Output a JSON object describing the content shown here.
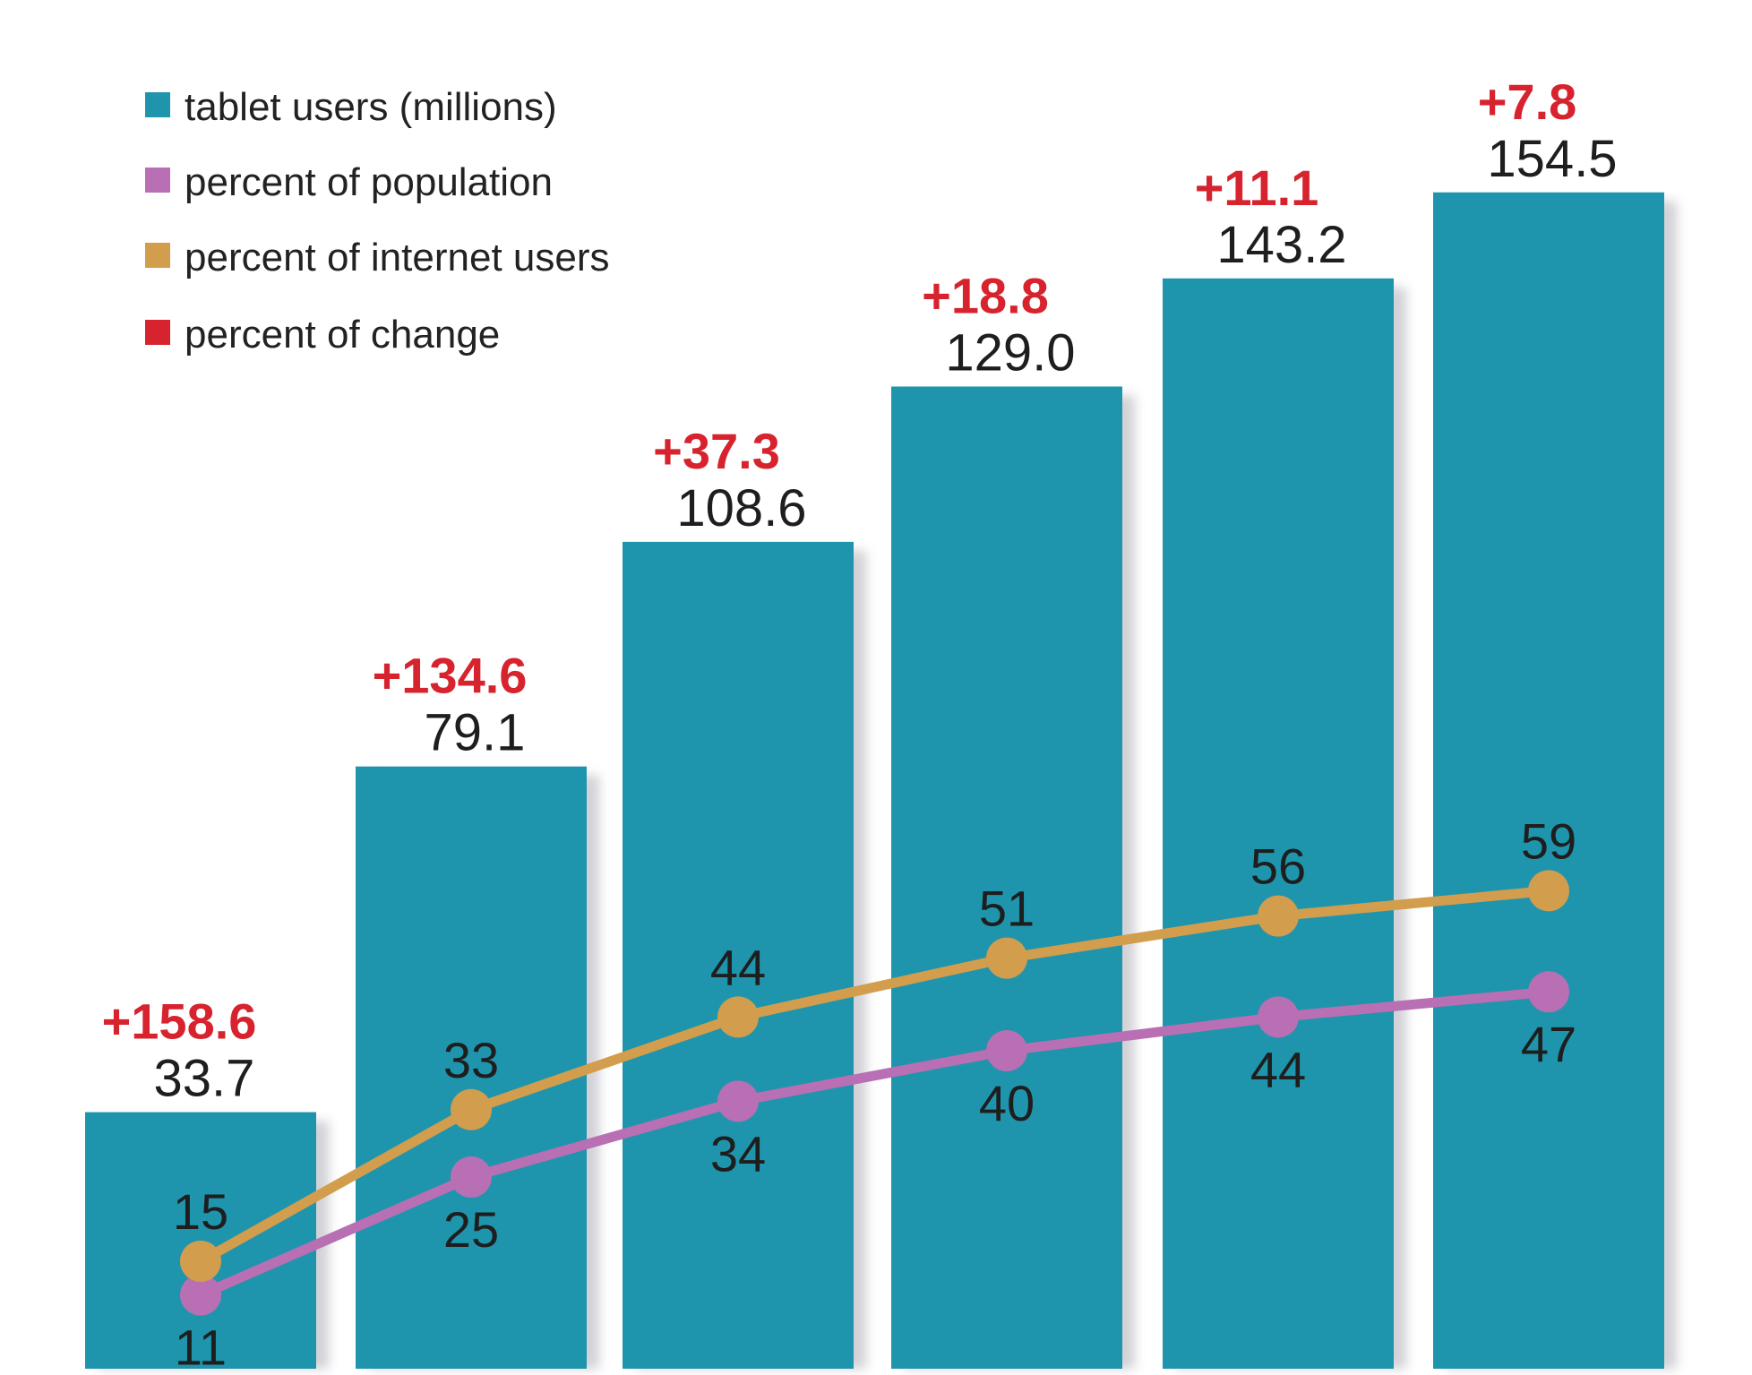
{
  "chart_data": {
    "type": "bar",
    "title": "",
    "xlabel": "",
    "ylabel": "",
    "categories": [
      "",
      "",
      "",
      "",
      "",
      ""
    ],
    "ylim": [
      0,
      160
    ],
    "line_ylim": [
      0,
      160
    ],
    "series": [
      {
        "name": "tablet users (millions)",
        "kind": "bar",
        "color": "#1f95ad",
        "values": [
          33.7,
          79.1,
          108.6,
          129.0,
          143.2,
          154.5
        ],
        "labels": [
          "33.7",
          "79.1",
          "108.6",
          "129.0",
          "143.2",
          "154.5"
        ]
      },
      {
        "name": "percent of population",
        "kind": "line",
        "color": "#b86fb3",
        "values": [
          11,
          25,
          34,
          40,
          44,
          47
        ],
        "labels": [
          "11",
          "25",
          "34",
          "40",
          "44",
          "47"
        ]
      },
      {
        "name": "percent of internet users",
        "kind": "line",
        "color": "#d29d4c",
        "values": [
          15,
          33,
          44,
          51,
          56,
          59
        ],
        "labels": [
          "15",
          "33",
          "44",
          "51",
          "56",
          "59"
        ]
      },
      {
        "name": "percent of change",
        "kind": "label",
        "color": "#d7232e",
        "values": [
          158.6,
          134.6,
          37.3,
          18.8,
          11.1,
          7.8
        ],
        "labels": [
          "+158.6",
          "+134.6",
          "+37.3",
          "+18.8",
          "+11.1",
          "+7.8"
        ]
      }
    ],
    "legend": {
      "position": "top-left",
      "items": [
        {
          "label": "tablet users (millions)",
          "color": "#1f95ad"
        },
        {
          "label": "percent of population",
          "color": "#b86fb3"
        },
        {
          "label": "percent of internet users",
          "color": "#d29d4c"
        },
        {
          "label": "percent of change",
          "color": "#d7232e"
        }
      ]
    },
    "grid": false
  }
}
